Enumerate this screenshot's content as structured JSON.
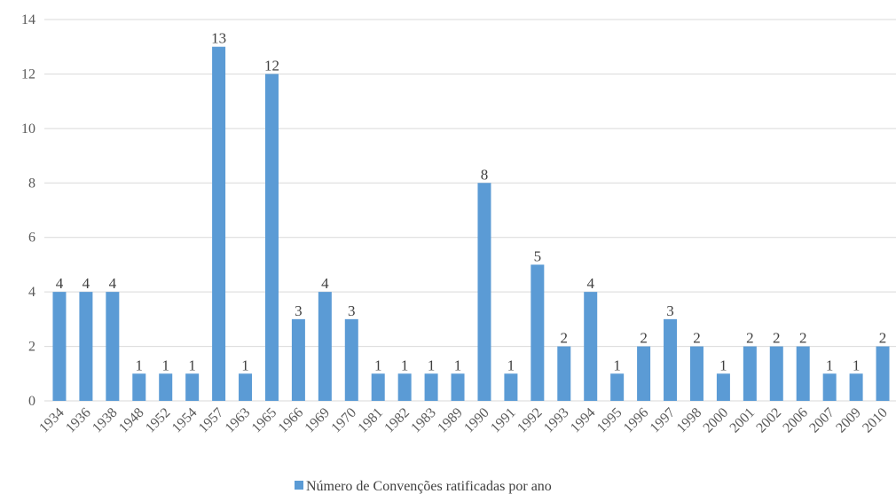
{
  "chart_data": {
    "type": "bar",
    "title": "",
    "xlabel": "",
    "ylabel": "",
    "ylim": [
      0,
      14
    ],
    "yticks": [
      "0",
      "2",
      "4",
      "6",
      "8",
      "10",
      "12",
      "14"
    ],
    "grid": true,
    "legend_position": "bottom",
    "bar_color": "#5b9bd5",
    "categories": [
      "1934",
      "1936",
      "1938",
      "1948",
      "1952",
      "1954",
      "1957",
      "1963",
      "1965",
      "1966",
      "1969",
      "1970",
      "1981",
      "1982",
      "1983",
      "1989",
      "1990",
      "1991",
      "1992",
      "1993",
      "1994",
      "1995",
      "1996",
      "1997",
      "1998",
      "2000",
      "2001",
      "2002",
      "2006",
      "2007",
      "2009",
      "2010"
    ],
    "series": [
      {
        "name": "Número de Convenções ratificadas por ano",
        "values": [
          4,
          4,
          4,
          1,
          1,
          1,
          13,
          1,
          12,
          3,
          4,
          3,
          1,
          1,
          1,
          1,
          8,
          1,
          5,
          2,
          4,
          1,
          2,
          3,
          2,
          1,
          2,
          2,
          2,
          1,
          1,
          2
        ]
      }
    ]
  }
}
